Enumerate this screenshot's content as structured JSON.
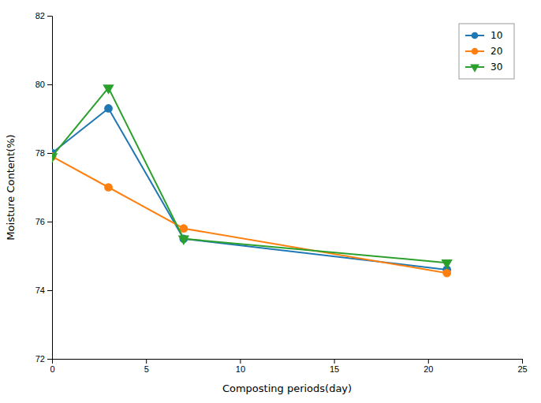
{
  "chart_data": {
    "type": "line",
    "xlabel": "Composting periods(day)",
    "ylabel": "Moisture Content(%)",
    "x": [
      0,
      3,
      7,
      21
    ],
    "series": [
      {
        "name": "10",
        "values": [
          78.0,
          79.3,
          75.5,
          74.6
        ],
        "marker": "circle"
      },
      {
        "name": "20",
        "values": [
          77.9,
          77.0,
          75.8,
          74.5
        ],
        "marker": "circle"
      },
      {
        "name": "30",
        "values": [
          77.9,
          79.9,
          75.5,
          74.8
        ],
        "marker": "triangle-down"
      }
    ],
    "xlim": [
      0,
      25
    ],
    "ylim": [
      72,
      82
    ],
    "xticks": [
      0,
      5,
      10,
      15,
      20,
      25
    ],
    "yticks": [
      72,
      74,
      76,
      78,
      80,
      82
    ],
    "legend": "upper right"
  }
}
